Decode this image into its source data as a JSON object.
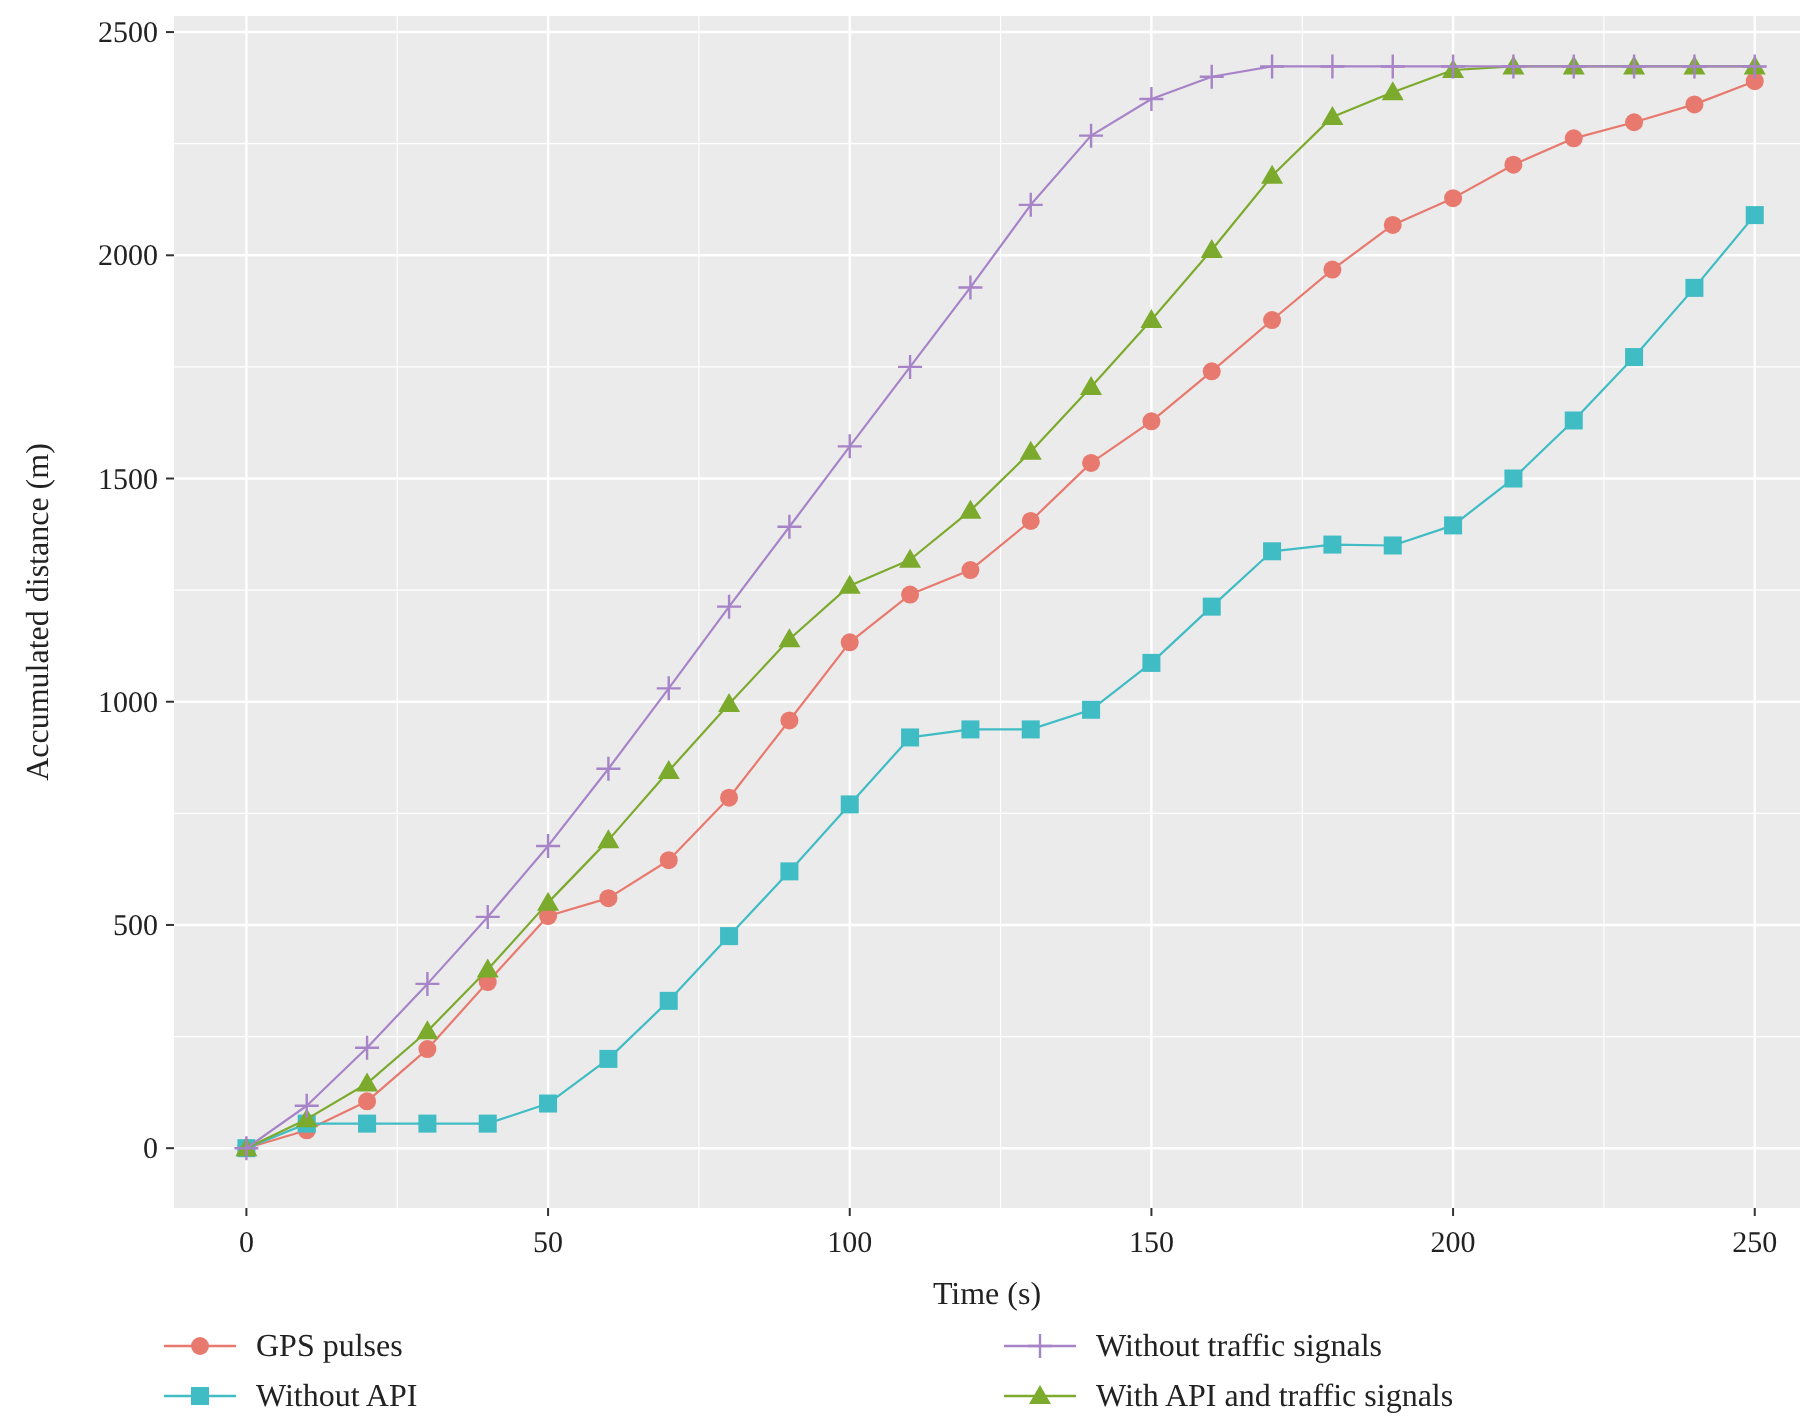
{
  "chart_data": {
    "type": "line",
    "xlabel": "Time (s)",
    "ylabel": "Accumulated distance (m)",
    "x": [
      0,
      10,
      20,
      30,
      40,
      50,
      60,
      70,
      80,
      90,
      100,
      110,
      120,
      130,
      140,
      150,
      160,
      170,
      180,
      190,
      200,
      210,
      220,
      230,
      240,
      250
    ],
    "xlim": [
      -12,
      257.5
    ],
    "xticks": [
      0,
      50,
      100,
      150,
      200,
      250
    ],
    "ylim": [
      -134,
      2536
    ],
    "yticks": [
      0,
      500,
      1000,
      1500,
      2000,
      2500
    ],
    "grid": true,
    "legend": "bottom",
    "series": [
      {
        "name": "GPS pulses",
        "color": "#e8796e",
        "marker": "circle",
        "values": [
          0,
          40,
          105,
          222,
          372,
          520,
          560,
          645,
          785,
          958,
          1133,
          1240,
          1295,
          1405,
          1535,
          1628,
          1740,
          1855,
          1968,
          2068,
          2128,
          2203,
          2262,
          2298,
          2338,
          2390
        ]
      },
      {
        "name": "Without API",
        "color": "#3fbcc4",
        "marker": "square",
        "values": [
          0,
          55,
          55,
          55,
          55,
          100,
          200,
          330,
          475,
          620,
          770,
          920,
          938,
          938,
          982,
          1087,
          1213,
          1337,
          1352,
          1350,
          1395,
          1500,
          1630,
          1772,
          1927,
          2090
        ]
      },
      {
        "name": "Without traffic signals",
        "color": "#a783c8",
        "marker": "cross",
        "values": [
          0,
          95,
          225,
          368,
          518,
          677,
          850,
          1030,
          1213,
          1392,
          1572,
          1750,
          1928,
          2113,
          2268,
          2350,
          2400,
          2423,
          2423,
          2423,
          2423,
          2423,
          2423,
          2423,
          2423,
          2423
        ]
      },
      {
        "name": "With API and traffic signals",
        "color": "#7caa2d",
        "marker": "triangle",
        "values": [
          0,
          65,
          145,
          262,
          400,
          550,
          690,
          845,
          995,
          1140,
          1260,
          1318,
          1428,
          1560,
          1705,
          1855,
          2012,
          2178,
          2310,
          2365,
          2415,
          2423,
          2423,
          2423,
          2423,
          2423
        ]
      }
    ]
  }
}
